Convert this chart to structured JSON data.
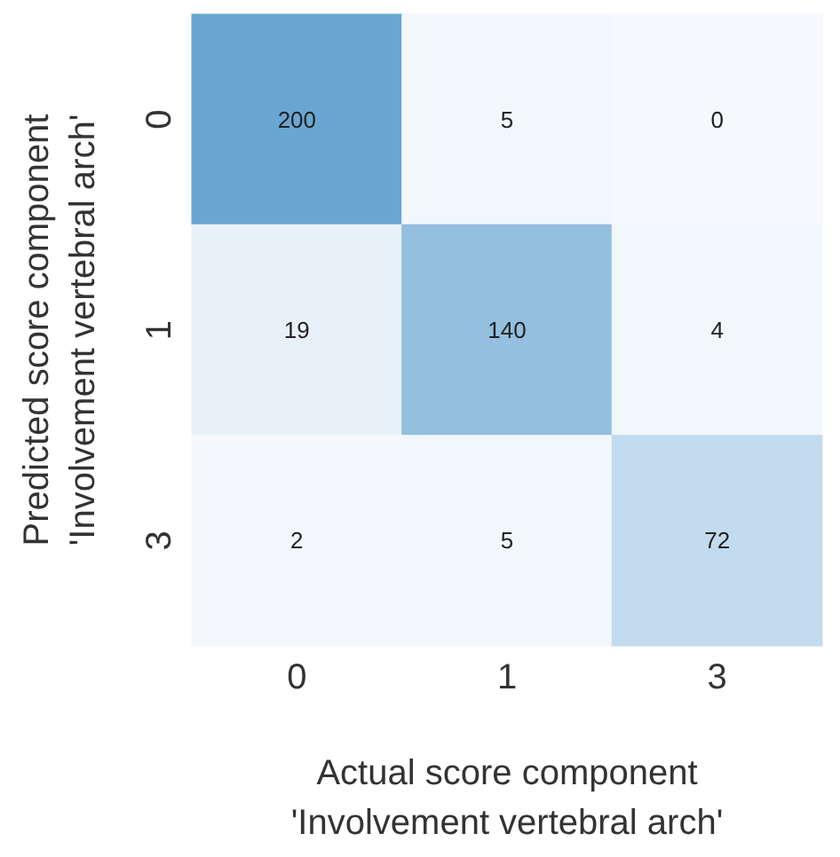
{
  "chart_data": {
    "type": "heatmap",
    "xlabel": "Actual score component\n'Involvement vertebral arch'",
    "ylabel": "Predicted score component\n'Involvement vertebral arch'",
    "categories": [
      "0",
      "1",
      "3"
    ],
    "y_categories": [
      "0",
      "1",
      "3"
    ],
    "cells": [
      [
        200,
        5,
        0
      ],
      [
        19,
        140,
        4
      ],
      [
        2,
        5,
        72
      ]
    ],
    "data_labels": true
  }
}
